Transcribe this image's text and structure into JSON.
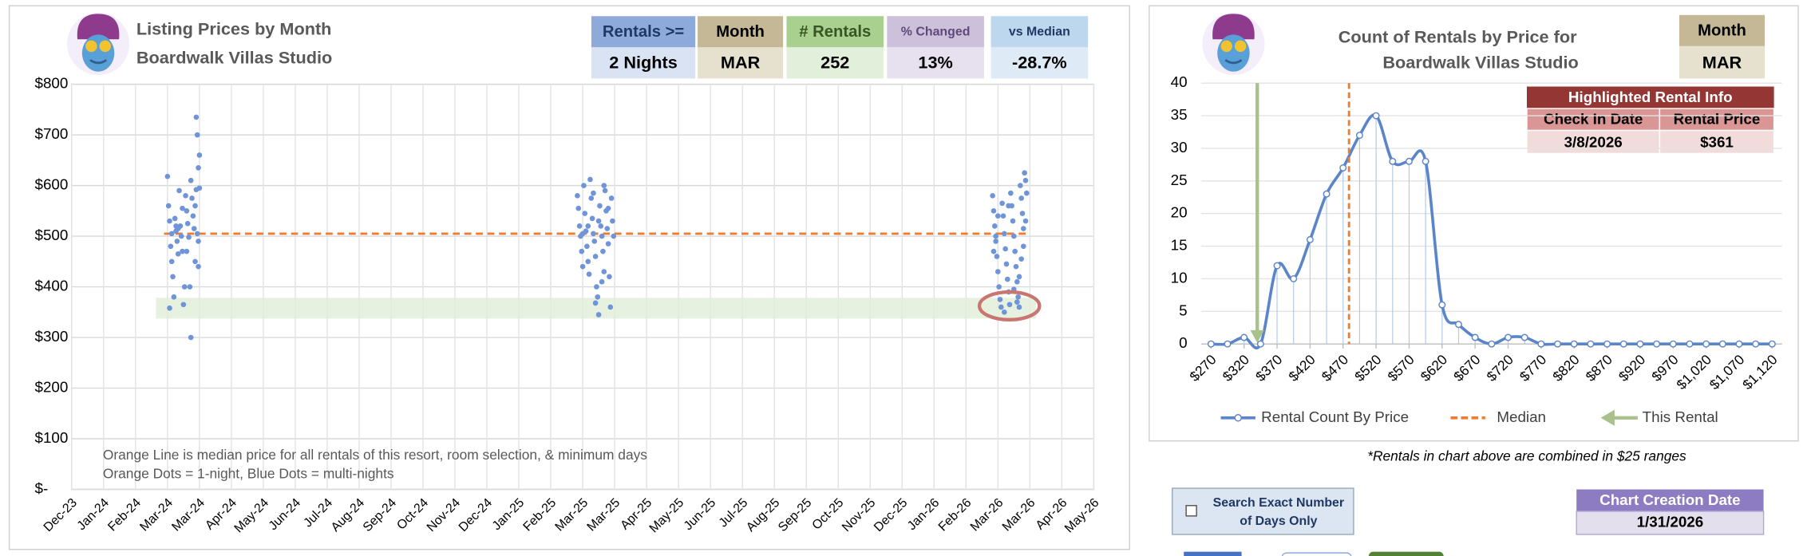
{
  "chart_data": [
    {
      "type": "scatter",
      "title": "Listing Prices by Month",
      "subtitle": "Boardwalk Villas Studio",
      "x": [
        90,
        91,
        92,
        93,
        94,
        95,
        96,
        92,
        97,
        98,
        99,
        100,
        101,
        102,
        103,
        104,
        105,
        106,
        107,
        108,
        109,
        110,
        111,
        112,
        113,
        114,
        115,
        116,
        117,
        118,
        119,
        117,
        118,
        119,
        116,
        119,
        120,
        120,
        112,
        108,
        104,
        98,
        94,
        100,
        475,
        476,
        477,
        478,
        479,
        480,
        481,
        482,
        483,
        484,
        485,
        486,
        487,
        488,
        489,
        490,
        491,
        492,
        493,
        494,
        495,
        496,
        497,
        498,
        499,
        500,
        501,
        502,
        503,
        504,
        505,
        506,
        507,
        508,
        509,
        495,
        490,
        485,
        480,
        500,
        504,
        498,
        492,
        865,
        866,
        867,
        868,
        869,
        870,
        871,
        872,
        873,
        874,
        875,
        876,
        877,
        878,
        879,
        880,
        881,
        882,
        883,
        884,
        885,
        886,
        887,
        888,
        889,
        890,
        891,
        892,
        893,
        894,
        895,
        896,
        897,
        896,
        894,
        892,
        890,
        888,
        885,
        880,
        876,
        870,
        868,
        866
      ],
      "values": [
        618,
        560,
        530,
        480,
        450,
        420,
        380,
        358,
        535,
        510,
        490,
        465,
        590,
        520,
        500,
        470,
        365,
        400,
        580,
        550,
        525,
        498,
        400,
        300,
        575,
        540,
        515,
        560,
        735,
        700,
        635,
        592,
        505,
        490,
        450,
        440,
        660,
        595,
        610,
        470,
        555,
        520,
        505,
        515,
        580,
        555,
        520,
        500,
        470,
        440,
        600,
        545,
        510,
        480,
        450,
        425,
        612,
        575,
        535,
        505,
        490,
        460,
        400,
        380,
        345,
        560,
        520,
        500,
        470,
        430,
        590,
        550,
        515,
        485,
        420,
        360,
        575,
        530,
        500,
        530,
        585,
        520,
        505,
        600,
        555,
        410,
        368,
        580,
        550,
        520,
        490,
        460,
        430,
        400,
        375,
        360,
        565,
        540,
        505,
        475,
        445,
        415,
        390,
        365,
        585,
        560,
        530,
        500,
        470,
        440,
        410,
        380,
        360,
        600,
        575,
        545,
        515,
        625,
        610,
        585,
        530,
        480,
        455,
        420,
        370,
        395,
        560,
        350,
        540,
        500,
        470
      ],
      "color": "#6f95d8",
      "median": 505,
      "median_color": "#ed7d31",
      "xlim": [
        0,
        960
      ],
      "xticks": [
        {
          "value": 0,
          "label": "Dec-23"
        },
        {
          "value": 30,
          "label": "Jan-24"
        },
        {
          "value": 60,
          "label": "Feb-24"
        },
        {
          "value": 90,
          "label": "Mar-24"
        },
        {
          "value": 120,
          "label": "Mar-24"
        },
        {
          "value": 150,
          "label": "Apr-24"
        },
        {
          "value": 180,
          "label": "May-24"
        },
        {
          "value": 210,
          "label": "Jun-24"
        },
        {
          "value": 240,
          "label": "Jul-24"
        },
        {
          "value": 270,
          "label": "Aug-24"
        },
        {
          "value": 300,
          "label": "Sep-24"
        },
        {
          "value": 330,
          "label": "Oct-24"
        },
        {
          "value": 360,
          "label": "Nov-24"
        },
        {
          "value": 390,
          "label": "Dec-24"
        },
        {
          "value": 420,
          "label": "Jan-25"
        },
        {
          "value": 450,
          "label": "Feb-25"
        },
        {
          "value": 480,
          "label": "Mar-25"
        },
        {
          "value": 510,
          "label": "Mar-25"
        },
        {
          "value": 540,
          "label": "Apr-25"
        },
        {
          "value": 570,
          "label": "May-25"
        },
        {
          "value": 600,
          "label": "Jun-25"
        },
        {
          "value": 630,
          "label": "Jul-25"
        },
        {
          "value": 660,
          "label": "Aug-25"
        },
        {
          "value": 690,
          "label": "Sep-25"
        },
        {
          "value": 720,
          "label": "Oct-25"
        },
        {
          "value": 750,
          "label": "Nov-25"
        },
        {
          "value": 780,
          "label": "Dec-25"
        },
        {
          "value": 810,
          "label": "Jan-26"
        },
        {
          "value": 840,
          "label": "Feb-26"
        },
        {
          "value": 870,
          "label": "Mar-26"
        },
        {
          "value": 900,
          "label": "Mar-26"
        },
        {
          "value": 930,
          "label": "Apr-26"
        },
        {
          "value": 960,
          "label": "May-26"
        }
      ],
      "ylim": [
        0,
        800
      ],
      "yticks": [
        {
          "value": 0,
          "label": "$-"
        },
        {
          "value": 100,
          "label": "$100"
        },
        {
          "value": 200,
          "label": "$200"
        },
        {
          "value": 300,
          "label": "$300"
        },
        {
          "value": 400,
          "label": "$400"
        },
        {
          "value": 500,
          "label": "$500"
        },
        {
          "value": 600,
          "label": "$600"
        },
        {
          "value": 700,
          "label": "$700"
        },
        {
          "value": 800,
          "label": "$800"
        }
      ],
      "grid": true,
      "annotations": [
        "Orange Line is median price for all rentals of this resort, room selection, & minimum days",
        "Orange Dots = 1-night, Blue Dots = multi-nights"
      ]
    },
    {
      "type": "line",
      "title": "Count of Rentals by Price for",
      "subtitle": "Boardwalk Villas Studio",
      "x": [
        270,
        295,
        320,
        345,
        370,
        395,
        420,
        445,
        470,
        495,
        520,
        545,
        570,
        595,
        620,
        645,
        670,
        695,
        720,
        745,
        770,
        795,
        820,
        845,
        870,
        895,
        920,
        945,
        970,
        995,
        1020,
        1045,
        1070,
        1095,
        1120
      ],
      "series": [
        {
          "name": "Rental Count By Price",
          "color": "#5b85c9",
          "values": [
            0,
            0,
            1,
            0,
            12,
            10,
            16,
            23,
            27,
            32,
            35,
            28,
            28,
            28,
            6,
            3,
            1,
            0,
            1,
            1,
            0,
            0,
            0,
            0,
            0,
            0,
            0,
            0,
            0,
            0,
            0,
            0,
            0,
            0,
            0
          ]
        }
      ],
      "median": 479,
      "median_label": "Median",
      "median_color": "#ed7d31",
      "this_rental_x": 340,
      "this_rental_label": "This Rental",
      "this_rental_color": "#a9c18c",
      "xlim": [
        255,
        1135
      ],
      "xticks": [
        {
          "value": 270,
          "label": "$270"
        },
        {
          "value": 320,
          "label": "$320"
        },
        {
          "value": 370,
          "label": "$370"
        },
        {
          "value": 420,
          "label": "$420"
        },
        {
          "value": 470,
          "label": "$470"
        },
        {
          "value": 520,
          "label": "$520"
        },
        {
          "value": 570,
          "label": "$570"
        },
        {
          "value": 620,
          "label": "$620"
        },
        {
          "value": 670,
          "label": "$670"
        },
        {
          "value": 720,
          "label": "$720"
        },
        {
          "value": 770,
          "label": "$770"
        },
        {
          "value": 820,
          "label": "$820"
        },
        {
          "value": 870,
          "label": "$870"
        },
        {
          "value": 920,
          "label": "$920"
        },
        {
          "value": 970,
          "label": "$970"
        },
        {
          "value": 1020,
          "label": "$1,020"
        },
        {
          "value": 1070,
          "label": "$1,070"
        },
        {
          "value": 1120,
          "label": "$1,120"
        }
      ],
      "ylim": [
        0,
        40
      ],
      "yticks": [
        0,
        5,
        10,
        15,
        20,
        25,
        30,
        35,
        40
      ],
      "grid": true,
      "legend": "bottom"
    }
  ],
  "tiles": [
    {
      "header": "Rentals >=",
      "value": "2 Nights"
    },
    {
      "header": "Month",
      "value": "MAR"
    },
    {
      "header": "# Rentals",
      "value": "252"
    },
    {
      "header": "% Changed",
      "value": "13%"
    },
    {
      "header": "vs Median",
      "value": "-28.7%"
    }
  ],
  "month_box": {
    "header": "Month",
    "value": "MAR"
  },
  "highlight": {
    "title": "Highlighted Rental Info",
    "headers": [
      "Check In Date",
      "Rental Price"
    ],
    "values": [
      "3/8/2026",
      "$361"
    ]
  },
  "footnote": "*Rentals in chart above are combined in $25 ranges",
  "checkbox": {
    "lines": [
      "Search Exact Number",
      "of Days Only"
    ]
  },
  "creation": {
    "header": "Chart Creation Date",
    "value": "1/31/2026"
  }
}
